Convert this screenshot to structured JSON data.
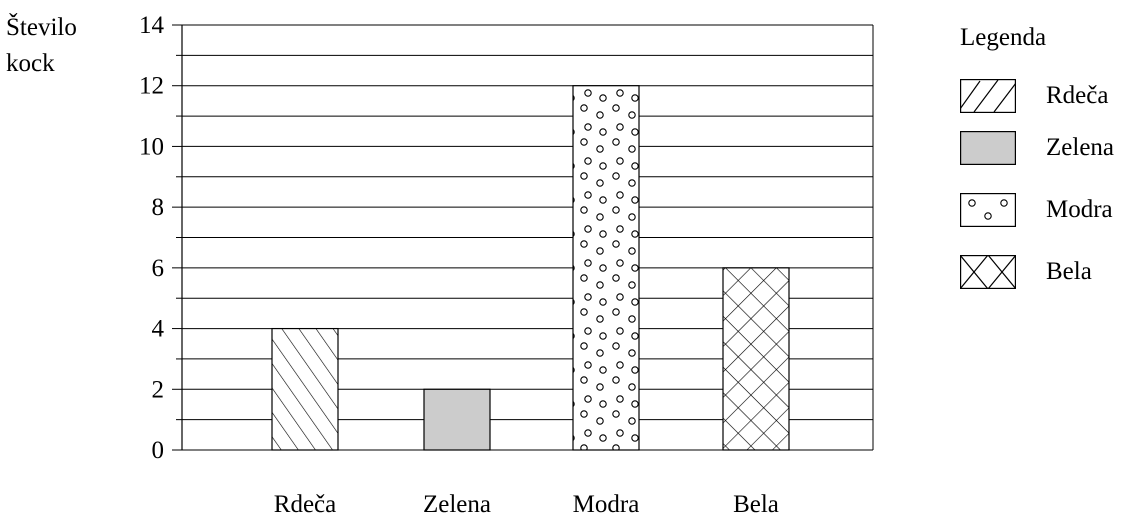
{
  "chart_data": {
    "type": "bar",
    "title": "",
    "xlabel": "",
    "ylabel": "Število kock",
    "ylabel_lines": [
      "Število",
      "kock"
    ],
    "ylim": [
      0,
      14
    ],
    "yticks": [
      0,
      2,
      4,
      6,
      8,
      10,
      12,
      14
    ],
    "minor_gridlines_every": 1,
    "grid": true,
    "categories": [
      "Rdeča",
      "Zelena",
      "Modra",
      "Bela"
    ],
    "values": [
      4,
      2,
      12,
      6
    ],
    "bar_fills": [
      "diagonal-hatch",
      "solid-gray",
      "circles",
      "cross-hatch"
    ],
    "legend": {
      "title": "Legenda",
      "placement": "right",
      "entries": [
        "Rdeča",
        "Zelena",
        "Modra",
        "Bela"
      ]
    },
    "colors": {
      "gray_fill": "#cccccc",
      "line": "#000000"
    }
  }
}
